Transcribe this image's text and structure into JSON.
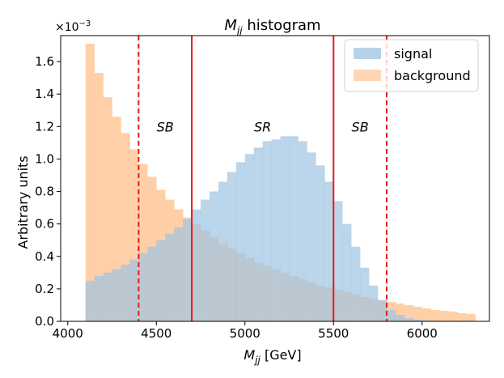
{
  "chart_data": {
    "type": "histogram",
    "title": "M_jj histogram",
    "title_parts": {
      "main": "M",
      "sub": "jj",
      "rest": " histogram"
    },
    "xlabel_parts": {
      "main": "M",
      "sub": "jj",
      "rest": " [GeV]"
    },
    "ylabel": "Arbitrary units",
    "y_multiplier": "×10",
    "y_multiplier_exp": "−3",
    "xlim": [
      3960,
      6380
    ],
    "ylim": [
      0,
      1.76
    ],
    "xticks": [
      4000,
      4500,
      5000,
      5500,
      6000
    ],
    "xtick_labels": [
      "4000",
      "4500",
      "5000",
      "5500",
      "6000"
    ],
    "yticks": [
      0.0,
      0.2,
      0.4,
      0.6,
      0.8,
      1.0,
      1.2,
      1.4,
      1.6
    ],
    "ytick_labels": [
      "0.0",
      "0.2",
      "0.4",
      "0.6",
      "0.8",
      "1.0",
      "1.2",
      "1.4",
      "1.6"
    ],
    "bin_start": 4100,
    "bin_width": 50,
    "series": [
      {
        "name": "signal",
        "color": "#9ec3e3",
        "values": [
          0.25,
          0.28,
          0.3,
          0.32,
          0.35,
          0.38,
          0.42,
          0.46,
          0.5,
          0.54,
          0.58,
          0.63,
          0.69,
          0.75,
          0.8,
          0.86,
          0.92,
          0.98,
          1.03,
          1.07,
          1.11,
          1.12,
          1.14,
          1.14,
          1.11,
          1.04,
          0.96,
          0.86,
          0.74,
          0.6,
          0.46,
          0.33,
          0.22,
          0.13,
          0.07,
          0.04,
          0.02,
          0.01,
          0.005,
          0.003,
          0.002,
          0.001,
          0.001,
          0.0
        ]
      },
      {
        "name": "background",
        "color": "#ffc899",
        "values": [
          1.71,
          1.53,
          1.38,
          1.26,
          1.16,
          1.06,
          0.97,
          0.89,
          0.81,
          0.75,
          0.69,
          0.64,
          0.6,
          0.56,
          0.52,
          0.48,
          0.45,
          0.42,
          0.39,
          0.36,
          0.34,
          0.32,
          0.3,
          0.28,
          0.26,
          0.24,
          0.22,
          0.21,
          0.195,
          0.18,
          0.165,
          0.15,
          0.14,
          0.13,
          0.12,
          0.11,
          0.1,
          0.09,
          0.08,
          0.07,
          0.065,
          0.06,
          0.05,
          0.045
        ]
      }
    ],
    "vlines": [
      {
        "x": 4400,
        "style": "dashed",
        "color": "#e41a1c"
      },
      {
        "x": 4700,
        "style": "solid",
        "color": "#e41a1c"
      },
      {
        "x": 5500,
        "style": "solid",
        "color": "#e41a1c"
      },
      {
        "x": 5800,
        "style": "dashed",
        "color": "#e41a1c"
      }
    ],
    "region_labels": [
      {
        "text": "SB",
        "x": 4550,
        "y": 1.2
      },
      {
        "text": "SR",
        "x": 5100,
        "y": 1.2
      },
      {
        "text": "SB",
        "x": 5650,
        "y": 1.2
      }
    ],
    "legend": {
      "position": "top-right",
      "entries": [
        {
          "label": "signal",
          "color": "#9ec3e3"
        },
        {
          "label": "background",
          "color": "#ffc899"
        }
      ]
    }
  }
}
